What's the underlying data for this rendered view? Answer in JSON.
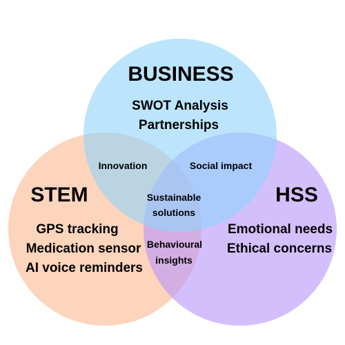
{
  "circles": {
    "business": {
      "title": "BUSINESS",
      "items": [
        "SWOT  Analysis",
        "Partnerships"
      ],
      "color": "#8fd3fb"
    },
    "stem": {
      "title": "STEM",
      "items": [
        "GPS tracking",
        "Medication sensor",
        "AI voice reminders"
      ],
      "color": "#fbb890"
    },
    "hss": {
      "title": "HSS",
      "items": [
        "Emotional needs",
        "Ethical concerns"
      ],
      "color": "#b894fb"
    }
  },
  "overlaps": {
    "business_stem": [
      "Innovation"
    ],
    "business_hss": [
      "Social impact"
    ],
    "stem_hss": [
      "Behavioural",
      "insights"
    ],
    "center": [
      "Sustainable",
      "solutions"
    ]
  }
}
